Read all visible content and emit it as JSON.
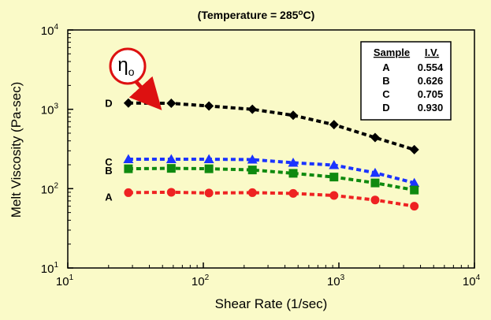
{
  "colors": {
    "background": "#fafac8",
    "axis": "#000000",
    "callout": "#dd1111",
    "legend_bg": "#ffffff"
  },
  "chart_data": {
    "type": "line",
    "title": "(Temperature = 285oC)",
    "title_main": "(Temperature = 285",
    "title_sup": "o",
    "title_tail": "C)",
    "xlabel": "Shear Rate (1/sec)",
    "ylabel": "Melt Viscosity (Pa-sec)",
    "xscale": "log",
    "yscale": "log",
    "xlim": [
      10,
      10000
    ],
    "ylim": [
      10,
      10000
    ],
    "x_ticks": [
      {
        "base": "10",
        "exp": "1",
        "value": 10
      },
      {
        "base": "10",
        "exp": "2",
        "value": 100
      },
      {
        "base": "10",
        "exp": "3",
        "value": 1000
      },
      {
        "base": "10",
        "exp": "4",
        "value": 10000
      }
    ],
    "y_ticks": [
      {
        "base": "10",
        "exp": "1",
        "value": 10
      },
      {
        "base": "10",
        "exp": "2",
        "value": 100
      },
      {
        "base": "10",
        "exp": "3",
        "value": 1000
      },
      {
        "base": "10",
        "exp": "4",
        "value": 10000
      }
    ],
    "grid": false,
    "x": [
      28,
      58,
      110,
      230,
      460,
      920,
      1850,
      3600
    ],
    "series": [
      {
        "name": "D",
        "color": "#000000",
        "marker": "diamond",
        "values": [
          1200,
          1190,
          1100,
          1000,
          840,
          640,
          440,
          310
        ]
      },
      {
        "name": "C",
        "color": "#1a33ff",
        "marker": "triangle",
        "values": [
          235,
          235,
          235,
          232,
          212,
          198,
          158,
          118
        ]
      },
      {
        "name": "B",
        "color": "#0f8a0f",
        "marker": "square",
        "values": [
          178,
          180,
          178,
          172,
          156,
          140,
          118,
          96
        ]
      },
      {
        "name": "A",
        "color": "#ee2222",
        "marker": "circle",
        "values": [
          89,
          90,
          88,
          89,
          87,
          82,
          72,
          60
        ]
      }
    ],
    "annotation": {
      "symbol": "η",
      "subscript": "o",
      "target_series": "D"
    },
    "legend": {
      "placement": "top-right",
      "headers": [
        "Sample",
        "I.V."
      ],
      "rows": [
        [
          "A",
          "0.554"
        ],
        [
          "B",
          "0.626"
        ],
        [
          "C",
          "0.705"
        ],
        [
          "D",
          "0.930"
        ]
      ]
    }
  }
}
